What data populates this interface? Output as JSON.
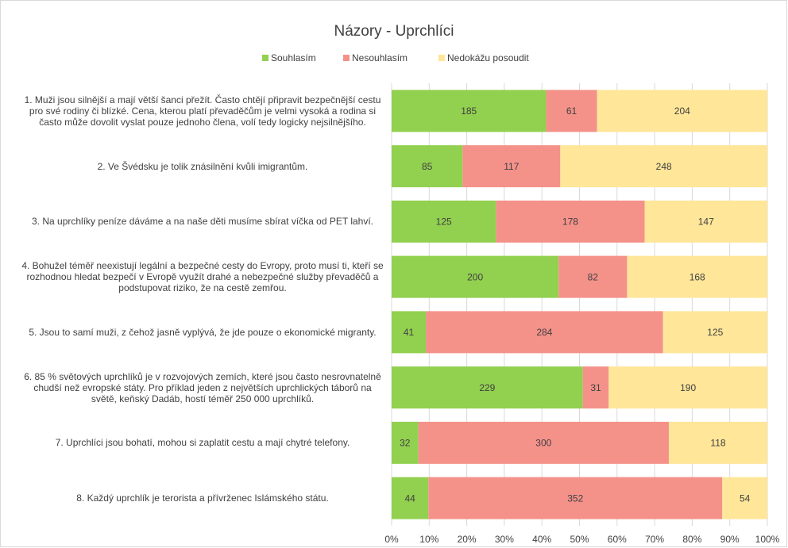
{
  "chart_data": {
    "type": "bar",
    "orientation": "horizontal",
    "stacking": "percent",
    "title": "Názory - Uprchlíci",
    "categories": [
      "1. Muži jsou silnější a mají větší šanci přežít. Často chtějí připravit bezpečnější cestu pro své rodiny či blízké. Cena, kterou platí převaděčům je velmi vysoká a rodina si často může dovolit vyslat pouze jednoho člena, volí tedy logicky nejsilnějšího.",
      "2. Ve Švédsku je tolik znásilnění kvůli imigrantům.",
      "3. Na uprchlíky peníze dáváme a na naše děti musíme sbírat víčka od PET lahví.",
      "4. Bohužel téměř neexistují legální a bezpečné cesty do Evropy, proto musí ti, kteří se rozhodnou hledat bezpečí v Evropě využít drahé a nebezpečné služby převaděčů a podstupovat riziko, že na cestě zemřou.",
      "5. Jsou to samí muži, z čehož jasně vyplývá, že jde pouze o ekonomické migranty.",
      "6. 85 % světových uprchlíků je v rozvojových zemích, které jsou často nesrovnatelně chudší než evropské státy. Pro příklad jeden z největších uprchlických táborů na světě, keňský Dadáb, hostí téměř 250 000 uprchlíků.",
      "7. Uprchlíci jsou bohatí, mohou si zaplatit cestu a mají chytré telefony.",
      "8. Každý uprchlík je terorista a přívrženec Islámského státu."
    ],
    "series": [
      {
        "name": "Souhlasím",
        "color": "#92d050",
        "values": [
          185,
          85,
          125,
          200,
          41,
          229,
          32,
          44
        ]
      },
      {
        "name": "Nesouhlasím",
        "color": "#f4928a",
        "values": [
          61,
          117,
          178,
          82,
          284,
          31,
          300,
          352
        ]
      },
      {
        "name": "Nedokážu posoudit",
        "color": "#ffe699",
        "values": [
          204,
          248,
          147,
          168,
          125,
          190,
          118,
          54
        ]
      }
    ],
    "xlim": [
      0,
      100
    ],
    "xticks": [
      {
        "value": 0,
        "label": "0%"
      },
      {
        "value": 10,
        "label": "10%"
      },
      {
        "value": 20,
        "label": "20%"
      },
      {
        "value": 30,
        "label": "30%"
      },
      {
        "value": 40,
        "label": "40%"
      },
      {
        "value": 50,
        "label": "50%"
      },
      {
        "value": 60,
        "label": "60%"
      },
      {
        "value": 70,
        "label": "70%"
      },
      {
        "value": 80,
        "label": "80%"
      },
      {
        "value": 90,
        "label": "90%"
      },
      {
        "value": 100,
        "label": "100%"
      }
    ],
    "grid": true,
    "legend": "top"
  }
}
